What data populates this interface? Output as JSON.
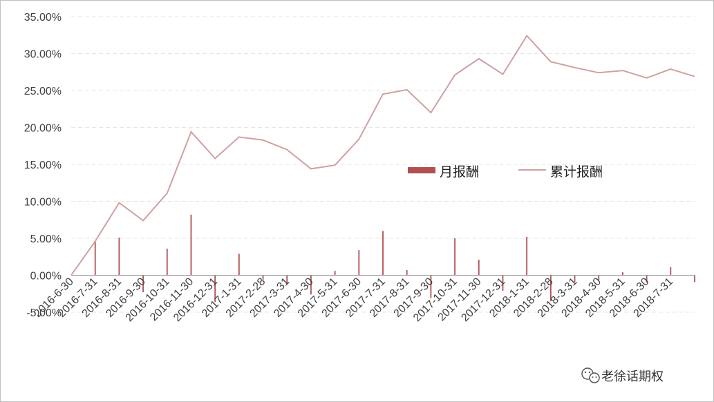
{
  "chart_data": {
    "type": "bar+line",
    "categories": [
      "2016-6-30",
      "2016-7-31",
      "2016-8-31",
      "2016-9-30",
      "2016-10-31",
      "2016-11-30",
      "2016-12-31",
      "2017-1-31",
      "2017-2-28",
      "2017-3-31",
      "2017-4-30",
      "2017-5-31",
      "2017-6-30",
      "2017-7-31",
      "2017-8-31",
      "2017-9-30",
      "2017-10-31",
      "2017-11-30",
      "2017-12-31",
      "2018-1-31",
      "2018-2-28",
      "2018-3-31",
      "2018-4-30",
      "2018-5-31",
      "2018-6-30",
      "2018-7-31",
      ""
    ],
    "series": [
      {
        "name": "月报酬",
        "kind": "bar",
        "color": "#b0504f",
        "values": [
          0.0,
          4.6,
          5.1,
          -2.3,
          3.6,
          8.2,
          -3.6,
          2.9,
          -0.6,
          -1.2,
          -2.6,
          0.6,
          3.4,
          6.0,
          0.7,
          -3.1,
          5.0,
          2.1,
          -2.1,
          5.2,
          -3.5,
          -0.9,
          -0.7,
          0.4,
          -1.0,
          1.1,
          -0.9
        ]
      },
      {
        "name": "累计报酬",
        "kind": "line",
        "color": "#d0a0a0",
        "values": [
          0.0,
          4.6,
          9.8,
          7.4,
          11.1,
          19.4,
          15.8,
          18.7,
          18.3,
          17.0,
          14.4,
          14.9,
          18.4,
          24.5,
          25.1,
          22.0,
          27.1,
          29.3,
          27.2,
          32.4,
          28.9,
          28.1,
          27.4,
          27.7,
          26.7,
          27.9,
          26.9
        ]
      }
    ],
    "ylim": [
      -5,
      35
    ],
    "yticks": [
      -5,
      0,
      5,
      10,
      15,
      20,
      25,
      30,
      35
    ],
    "ytick_labels": [
      "-5.00%",
      "0.00%",
      "5.00%",
      "10.00%",
      "15.00%",
      "20.00%",
      "25.00%",
      "30.00%",
      "35.00%"
    ],
    "grid": true,
    "legend_position": "center-right",
    "title": "",
    "xlabel": "",
    "ylabel": ""
  },
  "watermark": {
    "text": "老徐话期权",
    "icon": "wechat-icon"
  }
}
